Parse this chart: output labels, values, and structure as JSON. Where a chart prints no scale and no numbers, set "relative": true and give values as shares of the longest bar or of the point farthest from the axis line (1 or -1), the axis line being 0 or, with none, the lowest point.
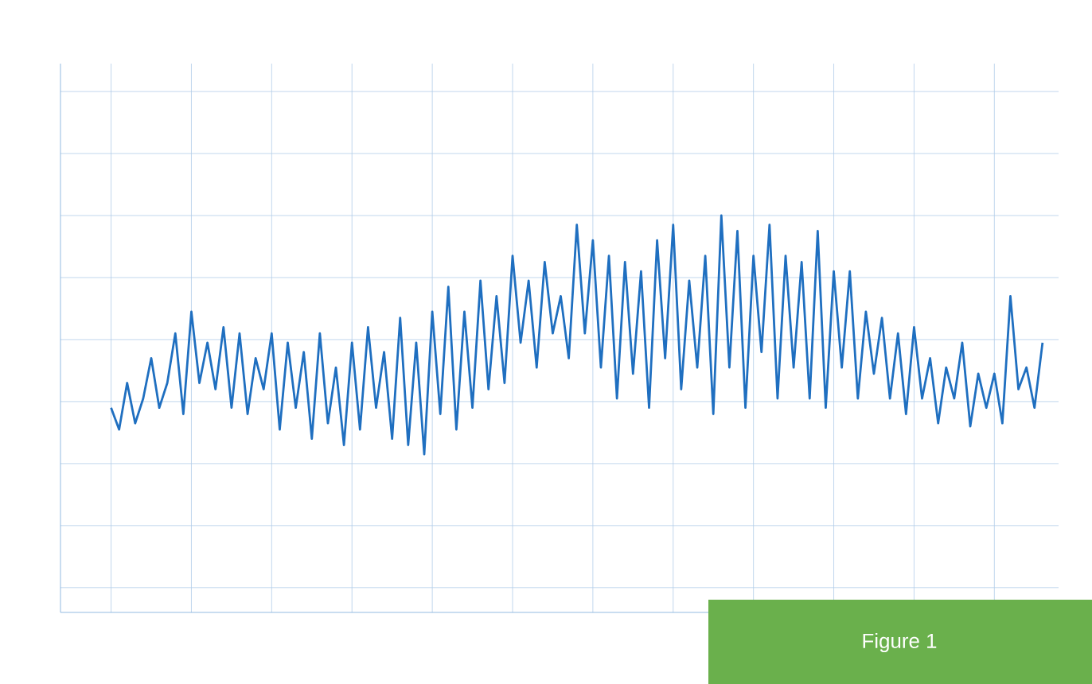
{
  "chart_data": {
    "type": "line",
    "relative": true,
    "grid": true,
    "color": "#1f6fc0",
    "annotations": [
      "Figure 1"
    ],
    "categories": [
      null,
      null,
      null,
      null,
      null,
      null,
      null,
      null,
      null,
      null,
      null,
      null,
      null,
      null,
      null,
      null,
      null,
      null,
      null,
      null,
      null,
      null,
      null,
      null,
      null,
      null,
      null,
      null,
      null,
      null,
      null,
      null,
      null,
      null,
      null,
      null,
      null,
      null,
      null,
      null,
      null,
      null,
      null,
      null,
      null,
      null,
      null,
      null,
      null,
      null,
      null,
      null,
      null,
      null,
      null,
      null,
      null,
      null,
      null,
      null,
      null,
      null,
      null,
      null,
      null,
      null,
      null,
      null,
      null,
      null,
      null,
      null,
      null,
      null,
      null,
      null,
      null,
      null,
      null,
      null,
      null,
      null,
      null,
      null,
      null,
      null,
      null,
      null,
      null,
      null,
      null,
      null,
      null,
      null,
      null,
      null,
      null,
      null,
      null,
      null,
      null,
      null,
      null,
      null,
      null,
      null,
      null,
      null,
      null,
      null,
      null,
      null,
      null,
      null,
      null,
      null,
      null
    ],
    "values": [
      0.38,
      0.31,
      0.46,
      0.33,
      0.41,
      0.54,
      0.38,
      0.46,
      0.62,
      0.36,
      0.69,
      0.46,
      0.59,
      0.44,
      0.64,
      0.38,
      0.62,
      0.36,
      0.54,
      0.44,
      0.62,
      0.31,
      0.59,
      0.38,
      0.56,
      0.28,
      0.62,
      0.33,
      0.51,
      0.26,
      0.59,
      0.31,
      0.64,
      0.38,
      0.56,
      0.28,
      0.67,
      0.26,
      0.59,
      0.23,
      0.69,
      0.36,
      0.77,
      0.31,
      0.69,
      0.38,
      0.79,
      0.44,
      0.74,
      0.46,
      0.87,
      0.59,
      0.79,
      0.51,
      0.85,
      0.62,
      0.74,
      0.54,
      0.97,
      0.62,
      0.92,
      0.51,
      0.87,
      0.41,
      0.85,
      0.49,
      0.82,
      0.38,
      0.92,
      0.54,
      0.97,
      0.44,
      0.79,
      0.51,
      0.87,
      0.36,
      1.0,
      0.51,
      0.95,
      0.38,
      0.87,
      0.56,
      0.97,
      0.41,
      0.87,
      0.51,
      0.85,
      0.41,
      0.95,
      0.38,
      0.82,
      0.51,
      0.82,
      0.41,
      0.69,
      0.49,
      0.67,
      0.41,
      0.62,
      0.36,
      0.64,
      0.41,
      0.54,
      0.33,
      0.51,
      0.41,
      0.59,
      0.32,
      0.49,
      0.38,
      0.49,
      0.33,
      0.74,
      0.44,
      0.51,
      0.38,
      0.59
    ]
  }
}
